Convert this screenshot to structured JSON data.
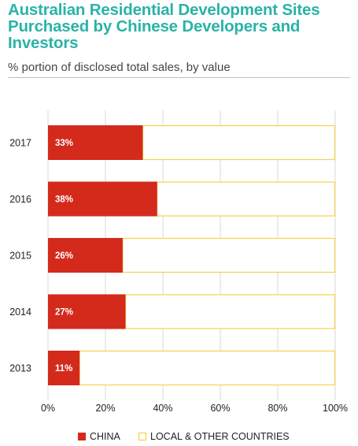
{
  "header": {
    "title": "Australian Residential Development Sites Purchased by Chinese Developers and Investors",
    "subtitle": "% portion of disclosed total sales, by value"
  },
  "colors": {
    "china": "#d42a1c",
    "other_fill": "#ffffff",
    "other_border": "#f5d34a",
    "title": "#2ab3a8",
    "grid": "#d9d9d9"
  },
  "chart_data": {
    "type": "bar",
    "orientation": "horizontal",
    "stacked": true,
    "categories": [
      "2017",
      "2016",
      "2015",
      "2014",
      "2013"
    ],
    "series": [
      {
        "name": "CHINA",
        "values": [
          33,
          38,
          26,
          27,
          11
        ],
        "labels": [
          "33%",
          "38%",
          "26%",
          "27%",
          "11%"
        ]
      },
      {
        "name": "LOCAL & OTHER COUNTRIES",
        "values": [
          67,
          62,
          74,
          73,
          89
        ]
      }
    ],
    "xlim": [
      0,
      100
    ],
    "xticks": [
      0,
      20,
      40,
      60,
      80,
      100
    ],
    "xtick_labels": [
      "0%",
      "20%",
      "40%",
      "60%",
      "80%",
      "100%"
    ],
    "grid": true,
    "legend_position": "bottom"
  }
}
